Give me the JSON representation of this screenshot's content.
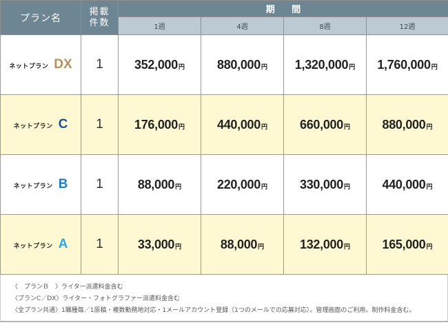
{
  "header": {
    "plan_name": "プラン名",
    "listing_count_line1": "掲載",
    "listing_count_line2": "件数",
    "period": "期 間",
    "weeks": [
      "1週",
      "4週",
      "8週",
      "12週"
    ]
  },
  "currency_unit": "円",
  "plans": [
    {
      "prefix": "ネットプラン",
      "letter": "DX",
      "letter_color": "#b8905a",
      "count": "1",
      "prices": [
        "352,000",
        "880,000",
        "1,320,000",
        "1,760,000"
      ],
      "row_bg": "#ffffff"
    },
    {
      "prefix": "ネットプラン",
      "letter": "C",
      "letter_color": "#1c4fa0",
      "count": "1",
      "prices": [
        "176,000",
        "440,000",
        "660,000",
        "880,000"
      ],
      "row_bg": "#fff9d3"
    },
    {
      "prefix": "ネットプラン",
      "letter": "B",
      "letter_color": "#1f7fc4",
      "count": "1",
      "prices": [
        "88,000",
        "220,000",
        "330,000",
        "440,000"
      ],
      "row_bg": "#ffffff"
    },
    {
      "prefix": "ネットプラン",
      "letter": "A",
      "letter_color": "#29a9e6",
      "count": "1",
      "prices": [
        "33,000",
        "88,000",
        "132,000",
        "165,000"
      ],
      "row_bg": "#fff9d3"
    }
  ],
  "notes": [
    "〈　プランＢ　〉ライター派遣料金含む",
    "〈プランC／DX〉ライター・フォトグラファー派遣料金含む",
    "〈全プラン共通〉1職種毎／1原稿・複数勤務地対応・1メールアカウント登録（1つのメールでの応募対応）。管理画面のご利用。制作料金含む。"
  ],
  "colors": {
    "header_dark": "#6e8593",
    "header_light": "#bccbd3",
    "row_yellow": "#fff9d3"
  }
}
